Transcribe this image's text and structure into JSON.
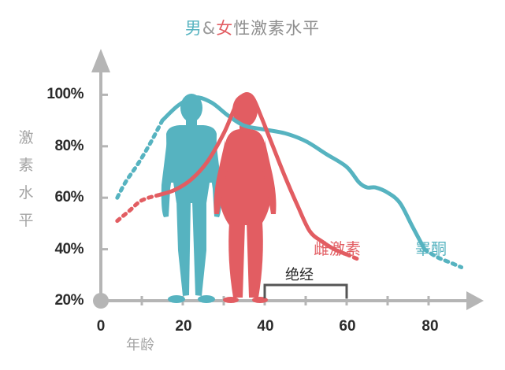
{
  "title": {
    "male": "男",
    "amp": "&",
    "female": "女",
    "rest": "性激素水平"
  },
  "ylabel": [
    "激",
    "素",
    "水",
    "平"
  ],
  "xlabel": "年龄",
  "colors": {
    "male": "#56b3c0",
    "female": "#e25d62",
    "axis": "#b5b5b5",
    "bracket": "#555555"
  },
  "chart_data": {
    "type": "line",
    "title": "男&女性激素水平",
    "xlabel": "年龄",
    "ylabel": "激素水平",
    "x_ticks": [
      "0",
      "20",
      "40",
      "60",
      "80"
    ],
    "y_ticks": [
      "20%",
      "40%",
      "60%",
      "80%",
      "100%"
    ],
    "xlim": [
      0,
      90
    ],
    "ylim": [
      20,
      100
    ],
    "series": [
      {
        "name": "睾酮",
        "color": "#56b3c0",
        "points": [
          [
            4,
            60
          ],
          [
            6,
            66
          ],
          [
            9,
            73
          ],
          [
            12,
            81
          ],
          [
            15,
            90
          ],
          [
            19,
            96
          ],
          [
            23,
            99
          ],
          [
            27,
            97
          ],
          [
            31,
            92
          ],
          [
            35,
            88
          ],
          [
            40,
            86.5
          ],
          [
            45,
            85
          ],
          [
            50,
            82
          ],
          [
            55,
            77
          ],
          [
            60,
            72
          ],
          [
            63,
            66
          ],
          [
            65,
            64
          ],
          [
            67,
            64
          ],
          [
            70,
            62
          ],
          [
            73,
            58
          ],
          [
            76,
            49
          ],
          [
            79,
            40
          ],
          [
            82,
            37
          ],
          [
            85,
            35
          ],
          [
            88,
            33
          ]
        ]
      },
      {
        "name": "雌激素",
        "color": "#e25d62",
        "points": [
          [
            4,
            51
          ],
          [
            7,
            55
          ],
          [
            10,
            59
          ],
          [
            14,
            61
          ],
          [
            18,
            63
          ],
          [
            22,
            67
          ],
          [
            26,
            74
          ],
          [
            30,
            85
          ],
          [
            33,
            96
          ],
          [
            35,
            100
          ],
          [
            37,
            99
          ],
          [
            39,
            92
          ],
          [
            42,
            80
          ],
          [
            45,
            68
          ],
          [
            48,
            57
          ],
          [
            51,
            47
          ],
          [
            54,
            43
          ],
          [
            57,
            40
          ],
          [
            60,
            38
          ],
          [
            63,
            36
          ]
        ]
      }
    ],
    "annotations": [
      {
        "text": "绝经",
        "x_range": [
          40,
          60
        ]
      }
    ]
  }
}
